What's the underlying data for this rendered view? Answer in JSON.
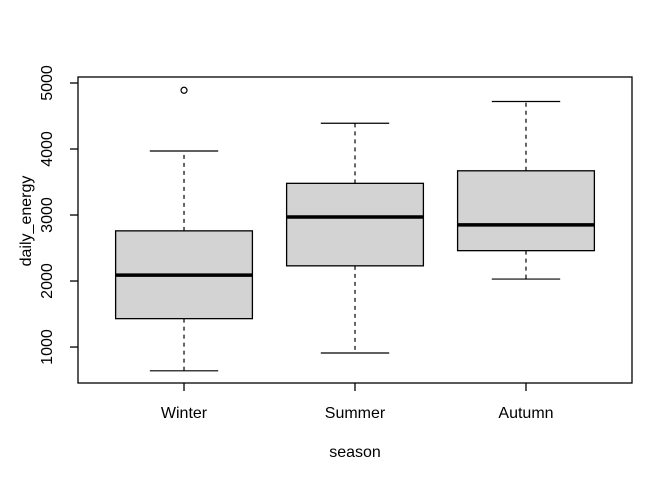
{
  "chart_data": {
    "type": "boxplot",
    "title": "",
    "xlabel": "season",
    "ylabel": "daily_energy",
    "categories": [
      "Winter",
      "Summer",
      "Autumn"
    ],
    "series": [
      {
        "name": "Winter",
        "whisker_low": 640,
        "q1": 1430,
        "median": 2090,
        "q3": 2760,
        "whisker_high": 3970,
        "outliers": [
          4890
        ]
      },
      {
        "name": "Summer",
        "whisker_low": 910,
        "q1": 2230,
        "median": 2970,
        "q3": 3480,
        "whisker_high": 4390,
        "outliers": []
      },
      {
        "name": "Autumn",
        "whisker_low": 2030,
        "q1": 2460,
        "median": 2850,
        "q3": 3670,
        "whisker_high": 4720,
        "outliers": []
      }
    ],
    "yticks": [
      1000,
      2000,
      3000,
      4000,
      5000
    ],
    "ytick_labels": [
      "1000",
      "2000",
      "3000",
      "4000",
      "5000"
    ],
    "ylim": [
      455,
      5091
    ],
    "grid": false,
    "legend": null,
    "colors": {
      "box_fill": "#d3d3d3",
      "box_stroke": "#000000",
      "median_stroke": "#000000",
      "background": "#ffffff",
      "text": "#000000"
    }
  }
}
